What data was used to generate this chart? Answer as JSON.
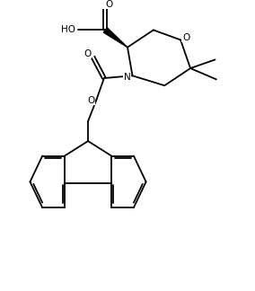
{
  "background": "#ffffff",
  "line_color": "#000000",
  "line_width": 1.3,
  "fig_width": 2.84,
  "fig_height": 3.24,
  "dpi": 100,
  "xlim": [
    0,
    10
  ],
  "ylim": [
    0,
    11.4
  ]
}
